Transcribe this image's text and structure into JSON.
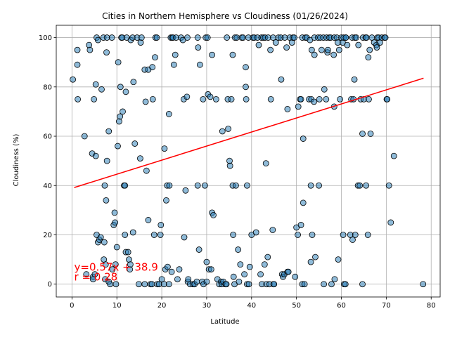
{
  "chart_data": {
    "type": "scatter",
    "title": "Cities in Northern Hemisphere vs Cloudiness (01/26/2024)",
    "xlabel": "Latitude",
    "ylabel": "Cloudiness (%)",
    "xlim": [
      -3.5,
      82
    ],
    "ylim": [
      -5.2,
      105
    ],
    "xticks": [
      0,
      10,
      20,
      30,
      40,
      50,
      60,
      70,
      80
    ],
    "yticks": [
      0,
      20,
      40,
      60,
      80,
      100
    ],
    "grid": true,
    "colors": {
      "points": "#1f77b4",
      "regression": "#ff0000",
      "annotation": "#ff0000"
    },
    "regression": {
      "slope": 0.57,
      "intercept": 38.9,
      "x_range": [
        0.5,
        78.3
      ]
    },
    "annotation": {
      "line1": "y=0.57x + 38.9",
      "line2": "r = 0.28",
      "x": 0.5,
      "y_line1": 5.5,
      "y_line2": 1.5
    },
    "points": [
      [
        0.2,
        83
      ],
      [
        1.2,
        95
      ],
      [
        1.2,
        89
      ],
      [
        1.3,
        75
      ],
      [
        2.8,
        60
      ],
      [
        3.2,
        4
      ],
      [
        3.8,
        97
      ],
      [
        4.0,
        95
      ],
      [
        4.5,
        53
      ],
      [
        4.7,
        3
      ],
      [
        4.7,
        2
      ],
      [
        4.9,
        75
      ],
      [
        5.1,
        4
      ],
      [
        5.3,
        81
      ],
      [
        5.3,
        52
      ],
      [
        5.5,
        100
      ],
      [
        5.5,
        20
      ],
      [
        5.8,
        99
      ],
      [
        5.8,
        17
      ],
      [
        6.1,
        18
      ],
      [
        6.4,
        19
      ],
      [
        6.6,
        79
      ],
      [
        7.0,
        100
      ],
      [
        7.1,
        10
      ],
      [
        7.2,
        17
      ],
      [
        7.3,
        40
      ],
      [
        7.4,
        2
      ],
      [
        7.5,
        8
      ],
      [
        7.6,
        34
      ],
      [
        7.7,
        94
      ],
      [
        7.8,
        50
      ],
      [
        7.8,
        100
      ],
      [
        8.2,
        62
      ],
      [
        8.2,
        1
      ],
      [
        8.5,
        0
      ],
      [
        8.9,
        100
      ],
      [
        9.0,
        6
      ],
      [
        9.3,
        24
      ],
      [
        9.5,
        29
      ],
      [
        9.6,
        25
      ],
      [
        9.7,
        8
      ],
      [
        9.8,
        0
      ],
      [
        10.0,
        15
      ],
      [
        10.2,
        56
      ],
      [
        10.3,
        90
      ],
      [
        10.5,
        66
      ],
      [
        10.7,
        68
      ],
      [
        10.8,
        80
      ],
      [
        11.0,
        100
      ],
      [
        11.2,
        100
      ],
      [
        11.3,
        70
      ],
      [
        11.6,
        40
      ],
      [
        11.8,
        40
      ],
      [
        11.8,
        20
      ],
      [
        12.0,
        13
      ],
      [
        12.0,
        78
      ],
      [
        12.2,
        100
      ],
      [
        12.5,
        13
      ],
      [
        12.7,
        10
      ],
      [
        12.9,
        6
      ],
      [
        13.0,
        8
      ],
      [
        13.1,
        99
      ],
      [
        13.5,
        100
      ],
      [
        13.6,
        21
      ],
      [
        13.7,
        82
      ],
      [
        14.0,
        57
      ],
      [
        14.5,
        100
      ],
      [
        14.9,
        0
      ],
      [
        15.2,
        51
      ],
      [
        15.3,
        98
      ],
      [
        15.5,
        100
      ],
      [
        16.2,
        0
      ],
      [
        16.2,
        87
      ],
      [
        16.4,
        74
      ],
      [
        16.6,
        46
      ],
      [
        17.0,
        26
      ],
      [
        17.0,
        87
      ],
      [
        17.5,
        0
      ],
      [
        17.8,
        0
      ],
      [
        17.9,
        88
      ],
      [
        18.0,
        75
      ],
      [
        18.3,
        20
      ],
      [
        18.5,
        92
      ],
      [
        18.6,
        100
      ],
      [
        18.9,
        100
      ],
      [
        19.0,
        0
      ],
      [
        19.4,
        0
      ],
      [
        19.7,
        20
      ],
      [
        19.8,
        24
      ],
      [
        20.0,
        2
      ],
      [
        20.5,
        0
      ],
      [
        20.6,
        55
      ],
      [
        20.8,
        6
      ],
      [
        21.0,
        34
      ],
      [
        21.2,
        40
      ],
      [
        21.3,
        7
      ],
      [
        21.6,
        0
      ],
      [
        21.6,
        69
      ],
      [
        21.7,
        40
      ],
      [
        22.0,
        100
      ],
      [
        22.2,
        5
      ],
      [
        22.3,
        100
      ],
      [
        22.5,
        100
      ],
      [
        22.7,
        89
      ],
      [
        23.0,
        93
      ],
      [
        23.2,
        100
      ],
      [
        23.5,
        2
      ],
      [
        23.9,
        6
      ],
      [
        24.3,
        100
      ],
      [
        24.7,
        99
      ],
      [
        24.9,
        75
      ],
      [
        25.0,
        19
      ],
      [
        25.3,
        38
      ],
      [
        25.6,
        76
      ],
      [
        25.7,
        100
      ],
      [
        25.8,
        1
      ],
      [
        25.9,
        2
      ],
      [
        26.3,
        0
      ],
      [
        27.0,
        0
      ],
      [
        27.3,
        0
      ],
      [
        27.8,
        1
      ],
      [
        28.0,
        40
      ],
      [
        28.0,
        100
      ],
      [
        28.1,
        96
      ],
      [
        28.3,
        14
      ],
      [
        28.5,
        89
      ],
      [
        29.0,
        1
      ],
      [
        29.2,
        75
      ],
      [
        29.3,
        0
      ],
      [
        29.6,
        40
      ],
      [
        29.8,
        100
      ],
      [
        30.0,
        1
      ],
      [
        30.0,
        9
      ],
      [
        30.2,
        100
      ],
      [
        30.3,
        77
      ],
      [
        30.5,
        6
      ],
      [
        30.8,
        76
      ],
      [
        31.0,
        6
      ],
      [
        31.2,
        29
      ],
      [
        31.2,
        93
      ],
      [
        31.5,
        28
      ],
      [
        32.1,
        75
      ],
      [
        32.4,
        2
      ],
      [
        32.8,
        0
      ],
      [
        33.2,
        1
      ],
      [
        33.4,
        0
      ],
      [
        33.5,
        62
      ],
      [
        33.7,
        1
      ],
      [
        34.2,
        0
      ],
      [
        34.4,
        0
      ],
      [
        34.5,
        100
      ],
      [
        34.7,
        75
      ],
      [
        34.8,
        63
      ],
      [
        35.1,
        50
      ],
      [
        35.2,
        48
      ],
      [
        35.5,
        75
      ],
      [
        35.8,
        93
      ],
      [
        35.8,
        40
      ],
      [
        35.9,
        20
      ],
      [
        36.0,
        3
      ],
      [
        36.2,
        0
      ],
      [
        36.3,
        100
      ],
      [
        36.5,
        40
      ],
      [
        36.7,
        100
      ],
      [
        37.0,
        14
      ],
      [
        37.2,
        1
      ],
      [
        37.5,
        8
      ],
      [
        37.8,
        100
      ],
      [
        38.1,
        100
      ],
      [
        38.4,
        4
      ],
      [
        38.7,
        80
      ],
      [
        38.7,
        88
      ],
      [
        38.8,
        75
      ],
      [
        39.0,
        40
      ],
      [
        39.0,
        0
      ],
      [
        39.3,
        100
      ],
      [
        39.4,
        0
      ],
      [
        39.6,
        7
      ],
      [
        40.0,
        20
      ],
      [
        40.3,
        100
      ],
      [
        40.6,
        100
      ],
      [
        41.0,
        21
      ],
      [
        41.3,
        100
      ],
      [
        41.6,
        97
      ],
      [
        42.0,
        4
      ],
      [
        42.2,
        100
      ],
      [
        42.3,
        0
      ],
      [
        42.6,
        100
      ],
      [
        42.9,
        8
      ],
      [
        43.0,
        100
      ],
      [
        43.2,
        49
      ],
      [
        43.3,
        0
      ],
      [
        43.6,
        11
      ],
      [
        43.7,
        100
      ],
      [
        44.0,
        0
      ],
      [
        44.2,
        95
      ],
      [
        44.3,
        75
      ],
      [
        44.7,
        22
      ],
      [
        44.8,
        100
      ],
      [
        44.9,
        0
      ],
      [
        45.0,
        0
      ],
      [
        45.4,
        98
      ],
      [
        46.0,
        100
      ],
      [
        46.5,
        100
      ],
      [
        46.6,
        83
      ],
      [
        46.8,
        4
      ],
      [
        47.0,
        3
      ],
      [
        47.3,
        4
      ],
      [
        47.4,
        100
      ],
      [
        47.8,
        96
      ],
      [
        48.0,
        71
      ],
      [
        48.0,
        5
      ],
      [
        48.2,
        5
      ],
      [
        48.5,
        100
      ],
      [
        49.0,
        98
      ],
      [
        49.2,
        100
      ],
      [
        49.5,
        100
      ],
      [
        49.7,
        3
      ],
      [
        50.0,
        23
      ],
      [
        50.3,
        20
      ],
      [
        50.4,
        72
      ],
      [
        50.8,
        75
      ],
      [
        51.0,
        75
      ],
      [
        51.0,
        24
      ],
      [
        51.3,
        100
      ],
      [
        51.3,
        0
      ],
      [
        51.5,
        59
      ],
      [
        51.5,
        33
      ],
      [
        51.8,
        0
      ],
      [
        52.0,
        100
      ],
      [
        52.3,
        100
      ],
      [
        52.8,
        75
      ],
      [
        53.0,
        99
      ],
      [
        53.2,
        9
      ],
      [
        53.2,
        40
      ],
      [
        53.3,
        75
      ],
      [
        53.4,
        95
      ],
      [
        53.5,
        20
      ],
      [
        53.9,
        74
      ],
      [
        54.0,
        100
      ],
      [
        54.0,
        93
      ],
      [
        54.2,
        11
      ],
      [
        54.8,
        100
      ],
      [
        55.0,
        40
      ],
      [
        55.1,
        75
      ],
      [
        55.3,
        100
      ],
      [
        55.6,
        95
      ],
      [
        56.0,
        100
      ],
      [
        56.1,
        0
      ],
      [
        56.2,
        79
      ],
      [
        56.6,
        75
      ],
      [
        56.7,
        100
      ],
      [
        56.9,
        94
      ],
      [
        57.0,
        95
      ],
      [
        57.3,
        100
      ],
      [
        57.6,
        100
      ],
      [
        57.8,
        0
      ],
      [
        58.3,
        93
      ],
      [
        58.4,
        72
      ],
      [
        58.4,
        100
      ],
      [
        58.5,
        2
      ],
      [
        59.0,
        100
      ],
      [
        59.2,
        98
      ],
      [
        59.3,
        10
      ],
      [
        59.5,
        95
      ],
      [
        59.7,
        75
      ],
      [
        60.0,
        100
      ],
      [
        60.3,
        98
      ],
      [
        60.4,
        20
      ],
      [
        60.5,
        100
      ],
      [
        60.6,
        0
      ],
      [
        60.9,
        0
      ],
      [
        61.0,
        100
      ],
      [
        61.0,
        100
      ],
      [
        61.3,
        97
      ],
      [
        62.0,
        20
      ],
      [
        62.2,
        75
      ],
      [
        62.4,
        100
      ],
      [
        62.5,
        18
      ],
      [
        62.7,
        75
      ],
      [
        62.9,
        83
      ],
      [
        63.0,
        100
      ],
      [
        63.1,
        20
      ],
      [
        63.3,
        100
      ],
      [
        63.7,
        40
      ],
      [
        63.8,
        97
      ],
      [
        64.1,
        40
      ],
      [
        64.3,
        75
      ],
      [
        64.7,
        61
      ],
      [
        64.7,
        0
      ],
      [
        64.8,
        100
      ],
      [
        65.0,
        75
      ],
      [
        65.4,
        100
      ],
      [
        65.5,
        40
      ],
      [
        65.6,
        100
      ],
      [
        65.9,
        20
      ],
      [
        66.0,
        92
      ],
      [
        66.1,
        75
      ],
      [
        66.3,
        95
      ],
      [
        66.5,
        61
      ],
      [
        66.8,
        100
      ],
      [
        67.3,
        98
      ],
      [
        67.8,
        97
      ],
      [
        67.9,
        96
      ],
      [
        68.0,
        100
      ],
      [
        68.3,
        100
      ],
      [
        68.6,
        98
      ],
      [
        69.0,
        100
      ],
      [
        69.6,
        100
      ],
      [
        69.8,
        100
      ],
      [
        70.1,
        75
      ],
      [
        70.2,
        75
      ],
      [
        70.6,
        40
      ],
      [
        71.0,
        25
      ],
      [
        71.7,
        52
      ],
      [
        78.2,
        0
      ]
    ]
  }
}
